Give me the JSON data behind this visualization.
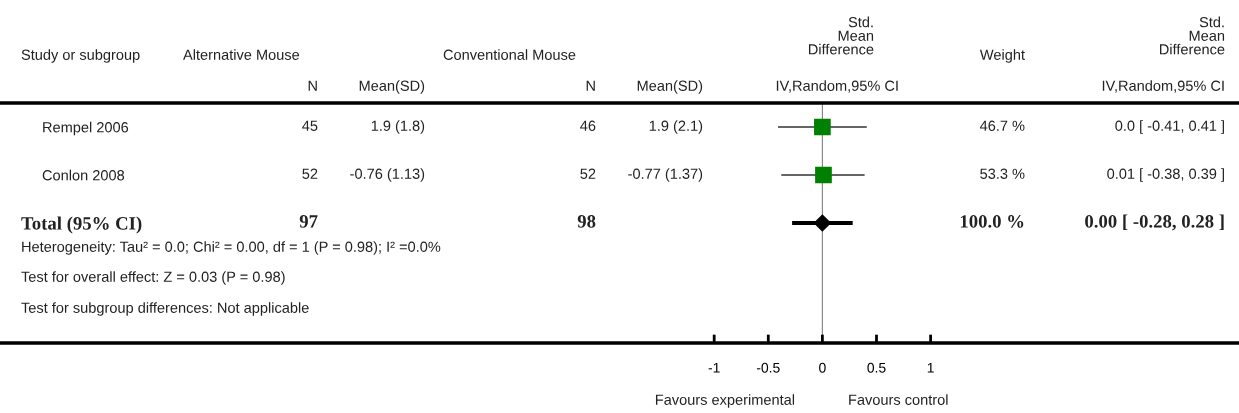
{
  "chart_data": {
    "type": "scatter",
    "orientation": "horizontal",
    "categories": [
      "Rempel 2006",
      "Conlon 2008",
      "Total (95% CI)",
      null,
      null
    ],
    "series": [
      {
        "marker": "square",
        "color": "#008000",
        "values": [
          0.0,
          0.01,
          null,
          null,
          null
        ],
        "errors": [
          [
            -0.41,
            0.41
          ],
          [
            -0.38,
            0.39
          ],
          null,
          null,
          null
        ]
      },
      {
        "marker": "diamond",
        "color": "#000000",
        "values": [
          null,
          null,
          0.0,
          null,
          null
        ],
        "errors": [
          null,
          null,
          [
            -0.28,
            0.28
          ],
          null,
          null
        ]
      }
    ],
    "xlim": [
      -7.6,
      3.85
    ],
    "xticks": [
      {
        "value": -1,
        "label": "-1"
      },
      -0.5,
      0,
      0.5,
      1
    ],
    "ref_lines": [
      {
        "axis": "x",
        "value": 0,
        "color": "#808080"
      }
    ],
    "grid": false,
    "tick_labels": "x",
    "annotations": [
      "Study or subgroup",
      "Alternative Mouse",
      "Conventional Mouse",
      "Std.\nMean\nDifference",
      "Weight",
      "Std.\nMean\nDifference",
      "N",
      "Mean(SD)",
      "N",
      "Mean(SD)",
      "IV,Random,95% CI",
      "IV,Random,95% CI",
      "45",
      "1.9 (1.8)",
      "46",
      "1.9 (2.1)",
      "46.7 %",
      "0.0 [ -0.41, 0.41 ]",
      "52",
      "-0.76 (1.13)",
      "52",
      "-0.77 (1.37)",
      "53.3 %",
      "0.01 [ -0.38, 0.39 ]",
      "97",
      "98",
      "100.0 %",
      "0.00 [ -0.28, 0.28 ]",
      "Heterogeneity: Tau² = 0.0; Chi² = 0.00, df = 1 (P = 0.98); I² =0.0%",
      "Test for overall effect: Z = 0.03 (P = 0.98)",
      "Test for subgroup differences: Not applicable",
      "Favours experimental",
      "Favours control"
    ]
  }
}
